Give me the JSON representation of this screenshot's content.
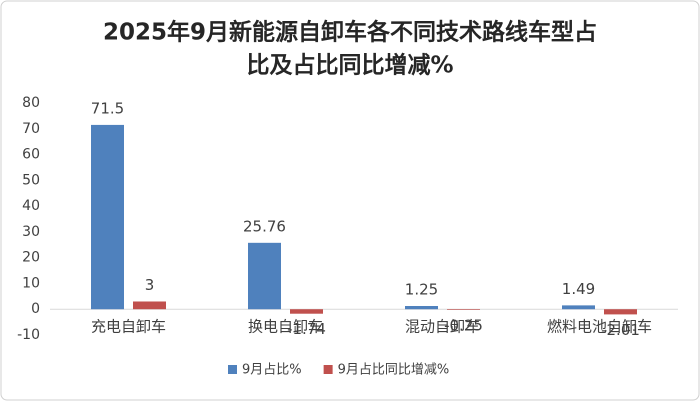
{
  "chart_data": {
    "type": "bar",
    "title": [
      "2025年9月新能源自卸车各不同技术路线车型占",
      "比及占比同比增减%"
    ],
    "categories": [
      "充电自卸车",
      "换电自卸车",
      "混动自卸车",
      "燃料电池自卸车"
    ],
    "series": [
      {
        "name": "9月占比%",
        "color": "#4f81bd",
        "values": [
          71.5,
          25.76,
          1.25,
          1.49
        ]
      },
      {
        "name": "9月占比同比增减%",
        "color": "#c0504d",
        "values": [
          3,
          -1.74,
          -0.25,
          -2.01
        ]
      }
    ],
    "ylim": [
      -10,
      80
    ],
    "yticks": [
      -10,
      0,
      10,
      20,
      30,
      40,
      50,
      60,
      70,
      80
    ],
    "grid": false,
    "legend": "bottom"
  }
}
